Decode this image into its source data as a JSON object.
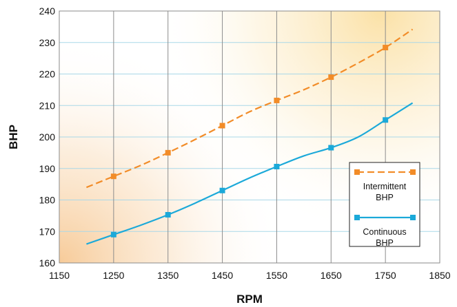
{
  "chart_data": {
    "type": "line",
    "title": "",
    "xlabel": "RPM",
    "ylabel": "BHP",
    "xlim": [
      1150,
      1850
    ],
    "ylim": [
      160,
      240
    ],
    "x_ticks": [
      "1150",
      "1250",
      "1350",
      "1450",
      "1550",
      "1650",
      "1750",
      "1850"
    ],
    "y_ticks": [
      "160",
      "170",
      "180",
      "190",
      "200",
      "210",
      "220",
      "230",
      "240"
    ],
    "grid": {
      "vertical": true,
      "horizontal": true
    },
    "legend_position": "bottom-right",
    "series": [
      {
        "name": "Intermittent BHP",
        "legend_lines": [
          "Intermittent",
          "BHP"
        ],
        "color": "#F28C28",
        "line_style": "dashed",
        "marker": "square",
        "curve_x": [
          1200,
          1250,
          1300,
          1350,
          1400,
          1450,
          1500,
          1550,
          1600,
          1650,
          1700,
          1750,
          1800
        ],
        "curve_y": [
          184,
          187.5,
          191,
          195,
          199.2,
          203.6,
          208,
          211.6,
          215,
          219,
          223.5,
          228.4,
          234.2
        ],
        "points_x": [
          1250,
          1350,
          1450,
          1550,
          1650,
          1750
        ],
        "points_y": [
          187.5,
          195,
          203.6,
          211.6,
          219,
          228.4
        ]
      },
      {
        "name": "Continuous BHP",
        "legend_lines": [
          "Continuous",
          "BHP"
        ],
        "color": "#1BA9D9",
        "line_style": "solid",
        "marker": "square",
        "curve_x": [
          1200,
          1250,
          1300,
          1350,
          1400,
          1450,
          1500,
          1550,
          1600,
          1650,
          1700,
          1750,
          1800
        ],
        "curve_y": [
          166,
          169,
          172,
          175.3,
          179,
          183,
          187,
          190.6,
          194,
          196.6,
          200,
          205.4,
          210.8
        ],
        "points_x": [
          1250,
          1350,
          1450,
          1550,
          1650,
          1750
        ],
        "points_y": [
          169,
          175.3,
          183,
          190.6,
          196.6,
          205.4
        ]
      }
    ]
  }
}
